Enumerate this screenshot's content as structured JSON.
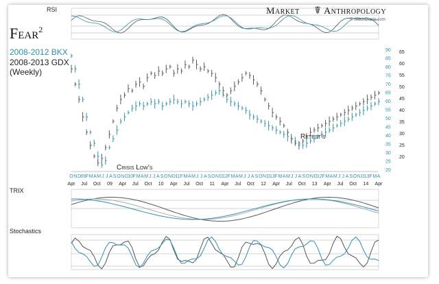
{
  "brand": {
    "name_left": "Market",
    "name_right": "Anthropology",
    "credit": "© StockCharts.com"
  },
  "header": {
    "title": "Fear",
    "title_sup": "2",
    "line1": "2008-2012 BKX",
    "line2": "2008-2013 GDX",
    "line3": "(Weekly)"
  },
  "annotations": {
    "crisis_low": "Crisis Low's",
    "retest": "Retest's"
  },
  "panels": {
    "rsi": "RSI",
    "trix": "TRIX",
    "stochastics": "Stochastics"
  },
  "colors": {
    "bkx": "#2f8fb0",
    "gdx": "#555555",
    "grid": "#9aaab5",
    "signal": "#aaaaaa"
  },
  "chart_data": {
    "type": "line",
    "title": "Fear²",
    "series": [
      {
        "name": "2008-2012 BKX",
        "color": "#2f8fb0",
        "values": [
          68,
          62,
          55,
          48,
          40,
          33,
          28,
          22,
          18,
          20,
          26,
          30,
          34,
          38,
          40,
          42,
          44,
          45,
          46,
          45,
          46,
          47,
          46,
          47,
          45,
          46,
          47,
          48,
          47,
          46,
          47,
          46,
          45,
          46,
          47,
          48,
          49,
          50,
          51,
          52,
          50,
          48,
          47,
          46,
          45,
          44,
          43,
          41,
          40,
          39,
          38,
          37,
          36,
          35,
          34,
          33,
          32,
          31,
          30,
          29,
          28,
          27,
          28,
          29,
          30,
          31,
          32,
          33,
          34,
          35,
          36,
          37,
          38,
          39,
          40,
          41,
          42,
          43,
          44,
          45,
          46,
          47
        ]
      },
      {
        "name": "2008-2013 GDX",
        "color": "#555555",
        "values": [
          62,
          55,
          48,
          40,
          33,
          27,
          22,
          19,
          21,
          26,
          32,
          38,
          44,
          48,
          50,
          53,
          52,
          55,
          56,
          54,
          58,
          60,
          59,
          61,
          60,
          62,
          63,
          60,
          62,
          61,
          64,
          63,
          66,
          64,
          62,
          63,
          61,
          60,
          58,
          55,
          52,
          50,
          52,
          54,
          56,
          58,
          60,
          59,
          57,
          55,
          52,
          48,
          45,
          42,
          40,
          38,
          36,
          33,
          30,
          28,
          27,
          29,
          31,
          33,
          34,
          35,
          36,
          37,
          38,
          39,
          40,
          41,
          42,
          43,
          44,
          45,
          46,
          47,
          48,
          49,
          50,
          51
        ]
      }
    ],
    "x_tick_labels_upper": [
      "O",
      "N",
      "D",
      "09",
      "F",
      "M",
      "A",
      "M",
      "J",
      "J",
      "A",
      "S",
      "O",
      "N",
      "D",
      "10",
      "F",
      "M",
      "A",
      "M",
      "J",
      "J",
      "A",
      "S",
      "O",
      "N",
      "D",
      "11",
      "F",
      "M",
      "A",
      "M",
      "J",
      "J",
      "A",
      "S",
      "O",
      "N",
      "D",
      "12",
      "F",
      "M",
      "A",
      "M",
      "J",
      "J",
      "A",
      "S",
      "O",
      "N",
      "D",
      "13",
      "F",
      "M",
      "A",
      "M",
      "J",
      "J",
      "A",
      "S",
      "O",
      "N",
      "D",
      "12",
      "F",
      "M",
      "A",
      "M",
      "J",
      "J",
      "A",
      "S",
      "O",
      "N",
      "D",
      "13",
      "F",
      "M",
      "A"
    ],
    "x_tick_labels_lower": [
      "Apr",
      "Jul",
      "Oct",
      "09",
      "Apr",
      "Jul",
      "Oct",
      "10",
      "Apr",
      "Jul",
      "Oct",
      "11",
      "Apr",
      "Jul",
      "Oct",
      "12",
      "Apr",
      "Jul",
      "Oct",
      "13",
      "Apr",
      "Jul",
      "Oct",
      "14",
      "Apr"
    ],
    "y_ticks_bkx": [
      "90",
      "85",
      "80",
      "75",
      "70",
      "65",
      "60",
      "55",
      "50",
      "45",
      "40",
      "35",
      "30",
      "25",
      "20"
    ],
    "y_ticks_gdx": [
      "65",
      "60",
      "55",
      "50",
      "45",
      "40",
      "35",
      "30",
      "25",
      "20"
    ],
    "grid": false,
    "legend": "top-left"
  }
}
